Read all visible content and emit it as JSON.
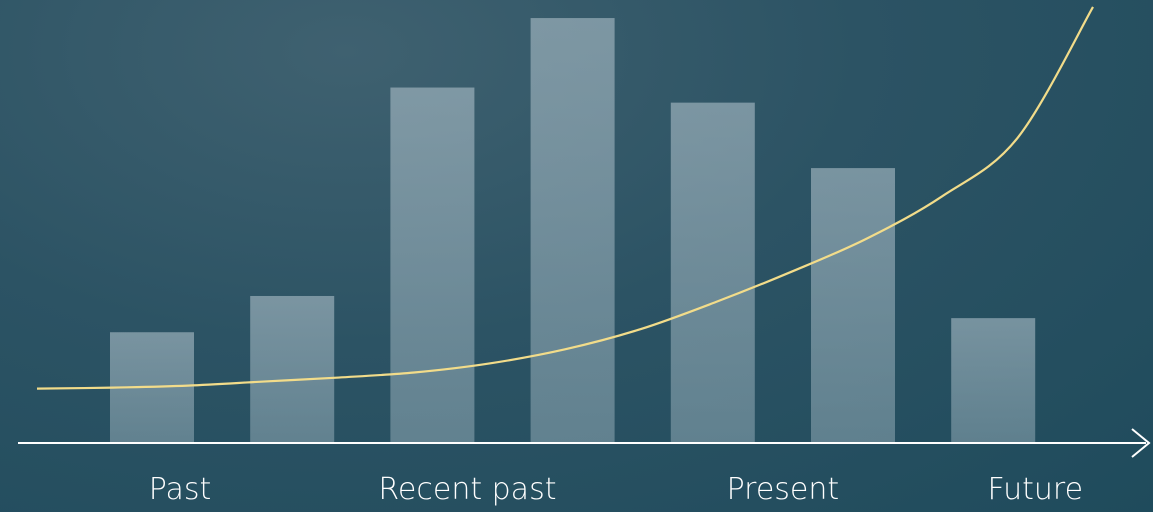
{
  "chart_data": {
    "type": "bar",
    "title": "",
    "xlabel": "",
    "ylabel": "",
    "ylim": [
      0,
      430
    ],
    "bars": {
      "values": [
        110,
        146,
        353,
        422,
        338,
        273,
        124
      ]
    },
    "trend_line": {
      "x": [
        0,
        0.5,
        1,
        1.5,
        2,
        2.5,
        3,
        3.5,
        4,
        4.5,
        5,
        5.5,
        6,
        6.5,
        7
      ],
      "y": [
        54,
        55,
        57,
        61,
        65,
        70,
        79,
        93,
        113,
        140,
        170,
        203,
        245,
        303,
        433
      ]
    },
    "tick_labels": [
      {
        "label": "Past",
        "x": 0.2
      },
      {
        "label": "Recent past",
        "x": 2.25
      },
      {
        "label": "Present",
        "x": 4.5
      },
      {
        "label": "Future",
        "x": 6.3
      }
    ],
    "colors": {
      "bar": "#9fb6c1",
      "trend_line": "#f2dc8a",
      "axis": "#ffffff"
    },
    "grid": false
  }
}
